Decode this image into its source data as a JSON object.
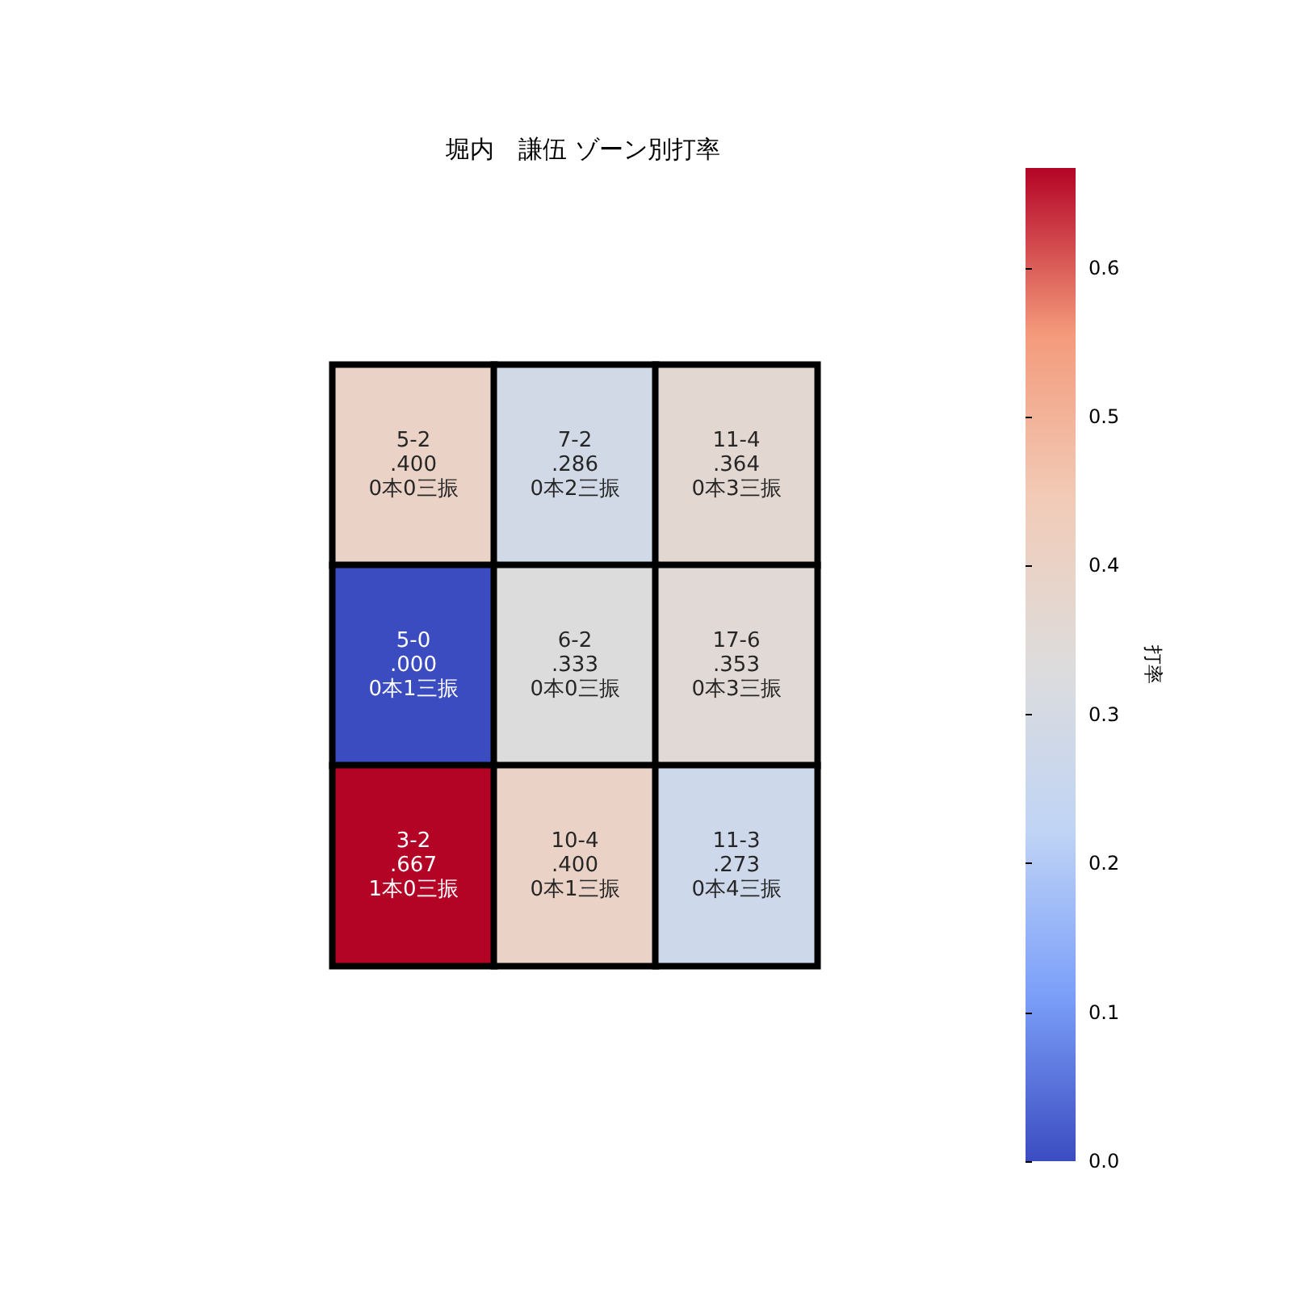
{
  "chart_data": {
    "type": "heatmap",
    "title": "堀内　謙伍 ゾーン別打率",
    "clabel": "打率",
    "categories": [
      null,
      null,
      null
    ],
    "y_categories": [
      null,
      null,
      null
    ],
    "cells": [
      [
        0.4,
        0.286,
        0.364
      ],
      [
        0.0,
        0.333,
        0.353
      ],
      [
        0.667,
        0.4,
        0.273
      ]
    ],
    "cell_labels": [
      [
        "5-2\n.400\n0本0三振",
        "7-2\n.286\n0本2三振",
        "11-4\n.364\n0本3三振"
      ],
      [
        "5-0\n.000\n0本1三振",
        "6-2\n.333\n0本0三振",
        "17-6\n.353\n0本3三振"
      ],
      [
        "3-2\n.667\n1本0三振",
        "10-4\n.400\n0本1三振",
        "11-3\n.273\n0本4三振"
      ]
    ],
    "clim": [
      0,
      0.667
    ],
    "cticks": [
      {
        "value": 0,
        "label": "0.0"
      },
      0.1,
      0.2,
      0.3,
      0.4,
      0.5,
      0.6
    ]
  }
}
